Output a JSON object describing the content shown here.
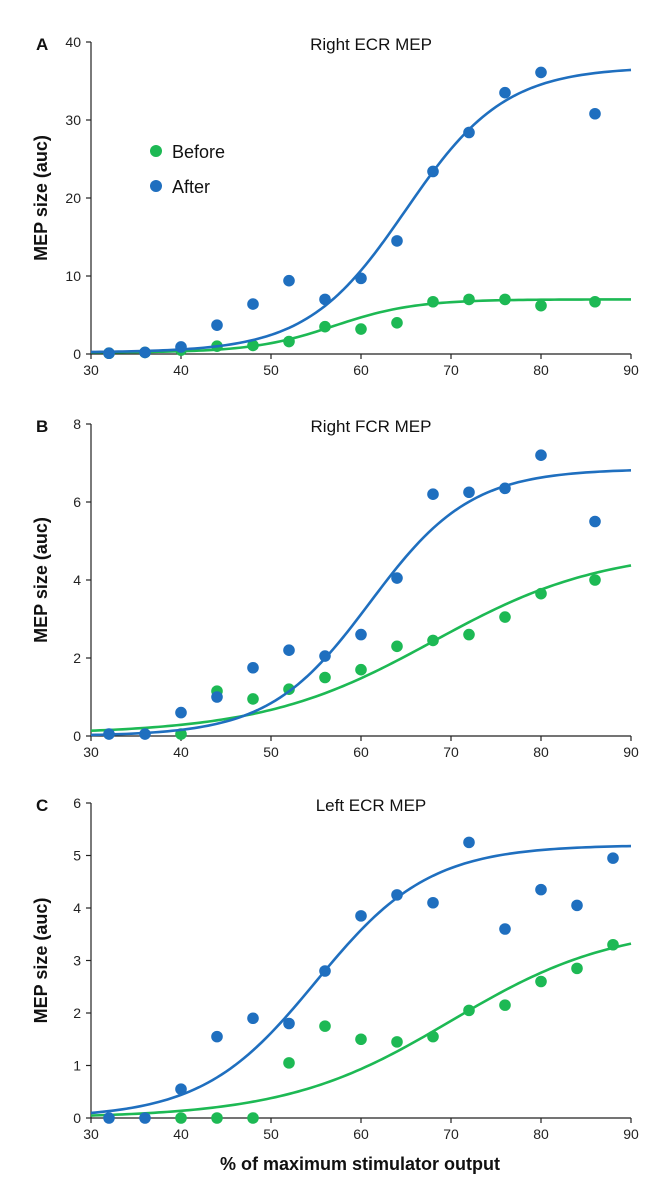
{
  "figure": {
    "xlabel": "% of maximum stimulator output"
  },
  "colors": {
    "before": "#1db954",
    "after": "#1f6fbf",
    "axis": "#222222"
  },
  "legend": {
    "before": "Before",
    "after": "After"
  },
  "chart_data": [
    {
      "type": "scatter",
      "panel": "A",
      "title": "Right ECR MEP",
      "ylabel": "MEP size (auc)",
      "xlim": [
        30,
        90
      ],
      "ylim": [
        0,
        40
      ],
      "xticks": [
        30,
        40,
        50,
        60,
        70,
        80,
        90
      ],
      "yticks": [
        0,
        10,
        20,
        30,
        40
      ],
      "series": [
        {
          "name": "Before",
          "color": "#1db954",
          "x": [
            32,
            36,
            40,
            44,
            48,
            52,
            56,
            60,
            64,
            68,
            72,
            76,
            80,
            86
          ],
          "y": [
            0.1,
            0.2,
            0.5,
            1.0,
            1.1,
            1.6,
            3.5,
            3.2,
            4.0,
            6.7,
            7.0,
            7.0,
            6.2,
            6.7
          ],
          "fit": {
            "min": 0.2,
            "max": 7.0,
            "x50": 57,
            "slope": 4.5
          }
        },
        {
          "name": "After",
          "color": "#1f6fbf",
          "x": [
            32,
            36,
            40,
            44,
            48,
            52,
            56,
            60,
            64,
            68,
            72,
            76,
            80,
            86
          ],
          "y": [
            0.1,
            0.2,
            0.9,
            3.7,
            6.4,
            9.4,
            7.0,
            9.7,
            14.5,
            23.4,
            28.4,
            33.5,
            36.1,
            30.8
          ],
          "fit": {
            "min": 0.2,
            "max": 36.8,
            "x50": 65,
            "slope": 5.5
          }
        }
      ]
    },
    {
      "type": "scatter",
      "panel": "B",
      "title": "Right FCR MEP",
      "ylabel": "MEP size (auc)",
      "xlim": [
        30,
        90
      ],
      "ylim": [
        0,
        8
      ],
      "xticks": [
        30,
        40,
        50,
        60,
        70,
        80,
        90
      ],
      "yticks": [
        0,
        2,
        4,
        6,
        8
      ],
      "series": [
        {
          "name": "Before",
          "color": "#1db954",
          "x": [
            40,
            44,
            48,
            52,
            56,
            60,
            64,
            68,
            72,
            76,
            80,
            86
          ],
          "y": [
            0.05,
            1.15,
            0.95,
            1.2,
            1.5,
            1.7,
            2.3,
            2.45,
            2.6,
            3.05,
            3.65,
            4.0
          ],
          "fit": {
            "min": 0.05,
            "max": 4.8,
            "x50": 68,
            "slope": 9.5
          }
        },
        {
          "name": "After",
          "color": "#1f6fbf",
          "x": [
            32,
            36,
            40,
            44,
            48,
            52,
            56,
            60,
            64,
            68,
            72,
            76,
            80,
            86
          ],
          "y": [
            0.05,
            0.05,
            0.6,
            1.0,
            1.75,
            2.2,
            2.05,
            2.6,
            4.05,
            6.2,
            6.25,
            6.35,
            7.2,
            5.5
          ],
          "fit": {
            "min": 0.0,
            "max": 6.85,
            "x50": 61,
            "slope": 5.6
          }
        }
      ]
    },
    {
      "type": "scatter",
      "panel": "C",
      "title": "Left ECR MEP",
      "ylabel": "MEP size (auc)",
      "xlim": [
        30,
        90
      ],
      "ylim": [
        0,
        6
      ],
      "xticks": [
        30,
        40,
        50,
        60,
        70,
        80,
        90
      ],
      "yticks": [
        0,
        1,
        2,
        3,
        4,
        5,
        6
      ],
      "series": [
        {
          "name": "Before",
          "color": "#1db954",
          "x": [
            40,
            44,
            48,
            52,
            56,
            60,
            64,
            68,
            72,
            76,
            80,
            84,
            88
          ],
          "y": [
            0.0,
            0.0,
            0.0,
            1.05,
            1.75,
            1.5,
            1.45,
            1.55,
            2.05,
            2.15,
            2.6,
            2.85,
            3.3
          ],
          "fit": {
            "min": 0.0,
            "max": 3.7,
            "x50": 70,
            "slope": 9.2
          }
        },
        {
          "name": "After",
          "color": "#1f6fbf",
          "x": [
            32,
            36,
            40,
            44,
            48,
            52,
            56,
            60,
            64,
            68,
            72,
            76,
            80,
            84,
            88
          ],
          "y": [
            0.0,
            0.0,
            0.55,
            1.55,
            1.9,
            1.8,
            2.8,
            3.85,
            4.25,
            4.1,
            5.25,
            3.6,
            4.35,
            4.05,
            4.95
          ],
          "fit": {
            "min": 0.0,
            "max": 5.2,
            "x50": 55,
            "slope": 6.3
          }
        }
      ]
    }
  ]
}
